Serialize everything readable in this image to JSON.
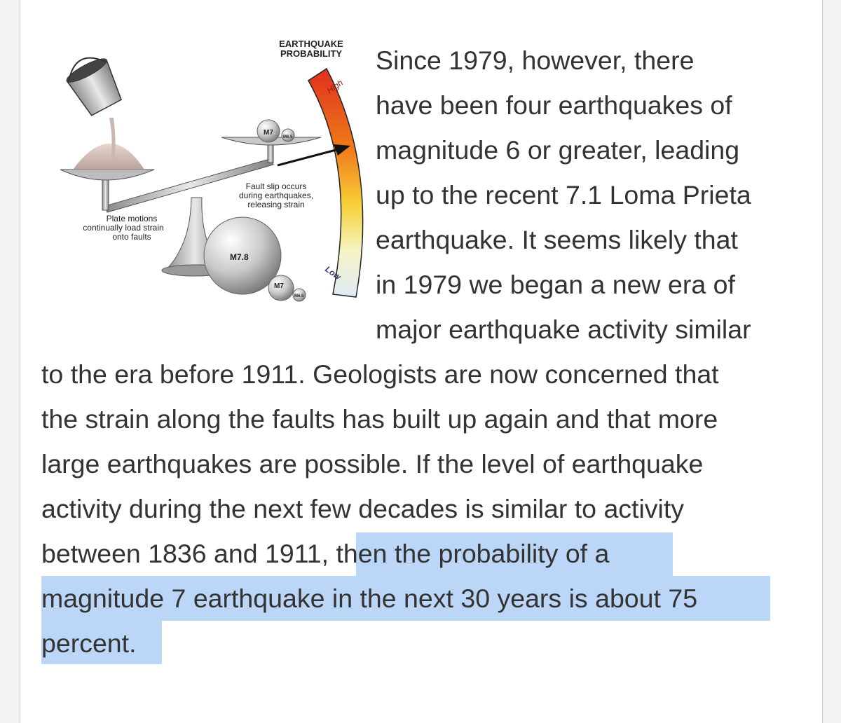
{
  "figure": {
    "scale_title_line1": "EARTHQUAKE",
    "scale_title_line2": "PROBABILITY",
    "scale_high": "High",
    "scale_low": "Low",
    "plate_label_line1": "Plate motions",
    "plate_label_line2": "continually load strain",
    "plate_label_line3": "onto faults",
    "fault_label_line1": "Fault slip occurs",
    "fault_label_line2": "during earthquakes,",
    "fault_label_line3": "releasing strain",
    "pan_label_m7": "M7",
    "pan_label_m65": "M6.5",
    "big_ball_label": "M7.8",
    "small_ball_label_m7": "M7",
    "small_ball_label_m65": "M6.5"
  },
  "paragraph": {
    "wrapped_lines": [
      "Since 1979, however, there",
      "have been four earthquakes of",
      "magnitude 6 or greater, leading",
      "up to the recent 7.1 Loma Prieta",
      "earthquake. It seems likely that",
      "in 1979 we began a new era of",
      "major earthquake activity similar"
    ],
    "full_lines": [
      "to the era before 1911. Geologists are now concerned that",
      "the strain along the faults has built up again and that more",
      "large earthquakes are possible. If the level of earthquake",
      "activity during the next few decades is similar to activity"
    ],
    "line12_plain": "between 1836 and 1911, ",
    "line12_highlight": "then the probability of a",
    "line13_highlight": "magnitude 7 earthquake in the next 30 years is about 75",
    "line14_highlight": "percent."
  },
  "colors": {
    "highlight": "#bcd6f7",
    "text": "#333333"
  }
}
